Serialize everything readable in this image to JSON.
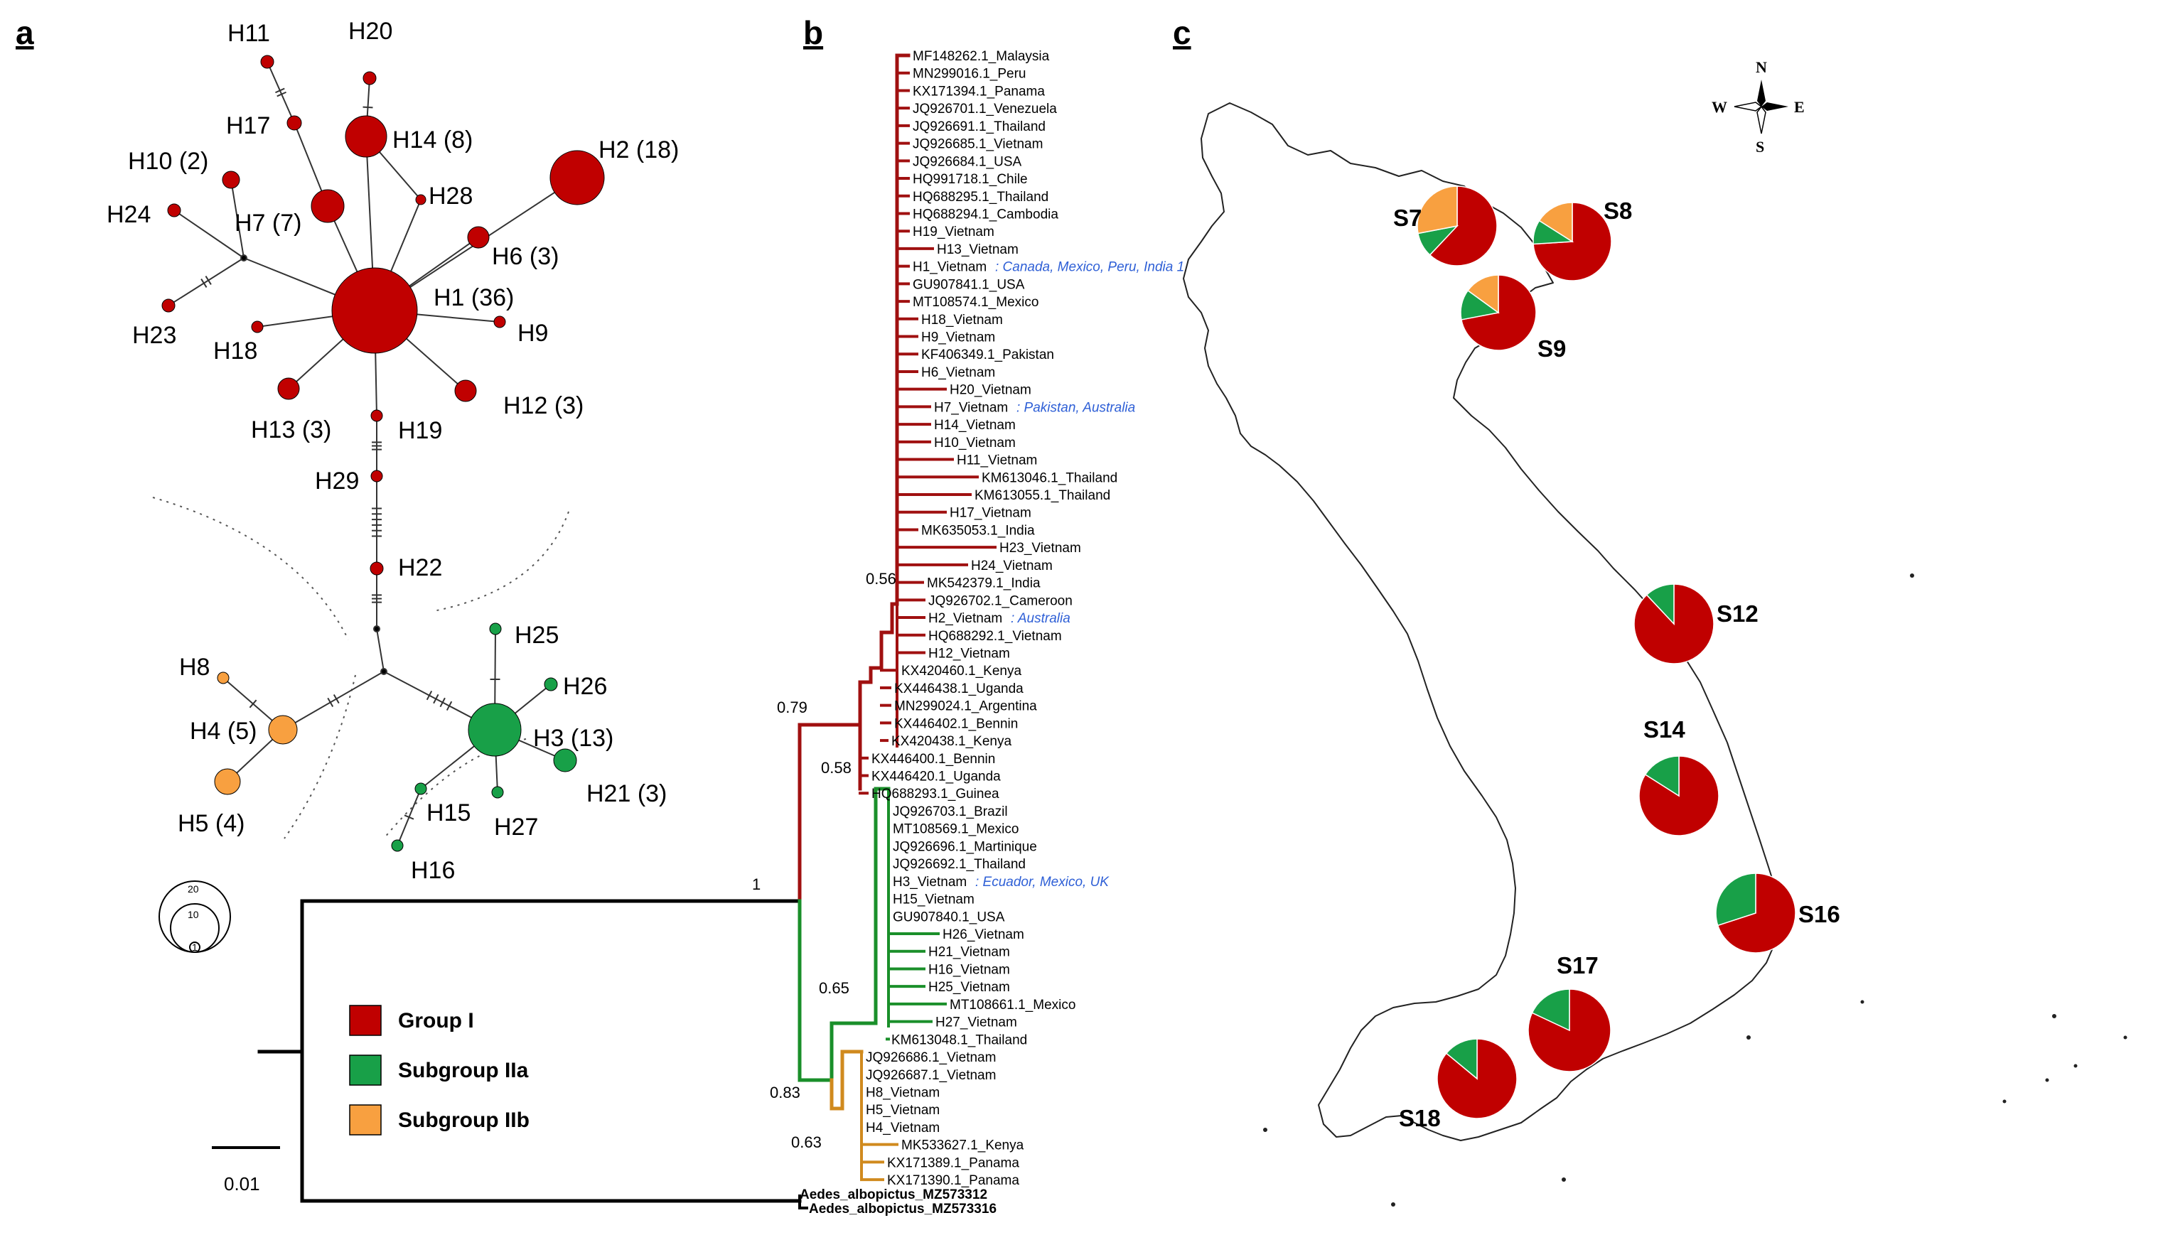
{
  "panels": {
    "a": "a",
    "b": "b",
    "c": "c"
  },
  "colors": {
    "group_1": "#c00000",
    "subgroup_2a": "#18a048",
    "subgroup_2b": "#f8a040",
    "branch_red": "#a01010",
    "branch_green": "#1a8f2a",
    "branch_orange": "#d08a1e"
  },
  "network": {
    "haplotypes": [
      {
        "id": "H1",
        "label": "H1 (36)",
        "group": "I"
      },
      {
        "id": "H2",
        "label": "H2 (18)",
        "group": "I"
      },
      {
        "id": "H14",
        "label": "H14 (8)",
        "group": "I"
      },
      {
        "id": "H7",
        "label": "H7 (7)",
        "group": "I"
      },
      {
        "id": "H10",
        "label": "H10 (2)",
        "group": "I"
      },
      {
        "id": "H6",
        "label": "H6 (3)",
        "group": "I"
      },
      {
        "id": "H13",
        "label": "H13 (3)",
        "group": "I"
      },
      {
        "id": "H12",
        "label": "H12 (3)",
        "group": "I"
      },
      {
        "id": "H11",
        "label": "H11",
        "group": "I"
      },
      {
        "id": "H20",
        "label": "H20",
        "group": "I"
      },
      {
        "id": "H17",
        "label": "H17",
        "group": "I"
      },
      {
        "id": "H28",
        "label": "H28",
        "group": "I"
      },
      {
        "id": "H24",
        "label": "H24",
        "group": "I"
      },
      {
        "id": "H23",
        "label": "H23",
        "group": "I"
      },
      {
        "id": "H18",
        "label": "H18",
        "group": "I"
      },
      {
        "id": "H9",
        "label": "H9",
        "group": "I"
      },
      {
        "id": "H19",
        "label": "H19",
        "group": "I"
      },
      {
        "id": "H29",
        "label": "H29",
        "group": "I"
      },
      {
        "id": "H22",
        "label": "H22",
        "group": "I"
      },
      {
        "id": "H3",
        "label": "H3 (13)",
        "group": "IIa"
      },
      {
        "id": "H25",
        "label": "H25",
        "group": "IIa"
      },
      {
        "id": "H26",
        "label": "H26",
        "group": "IIa"
      },
      {
        "id": "H21",
        "label": "H21 (3)",
        "group": "IIa"
      },
      {
        "id": "H27",
        "label": "H27",
        "group": "IIa"
      },
      {
        "id": "H15",
        "label": "H15",
        "group": "IIa"
      },
      {
        "id": "H16",
        "label": "H16",
        "group": "IIa"
      },
      {
        "id": "H4",
        "label": "H4 (5)",
        "group": "IIb"
      },
      {
        "id": "H5",
        "label": "H5 (4)",
        "group": "IIb"
      },
      {
        "id": "H8",
        "label": "H8",
        "group": "IIb"
      }
    ],
    "size_scale": [
      "20",
      "10",
      "1"
    ]
  },
  "legend": [
    {
      "label": "Group I",
      "color": "#c00000"
    },
    {
      "label": "Subgroup IIa",
      "color": "#18a048"
    },
    {
      "label": "Subgroup IIb",
      "color": "#f8a040"
    }
  ],
  "tree": {
    "scale_bar": "0.01",
    "supports": [
      "1",
      "0.79",
      "0.56",
      "0.58",
      "0.65",
      "0.83",
      "0.63"
    ],
    "tips": [
      {
        "label": "MF148262.1_Malaysia",
        "clade": "I"
      },
      {
        "label": "MN299016.1_Peru",
        "clade": "I"
      },
      {
        "label": "KX171394.1_Panama",
        "clade": "I"
      },
      {
        "label": "JQ926701.1_Venezuela",
        "clade": "I"
      },
      {
        "label": "JQ926691.1_Thailand",
        "clade": "I"
      },
      {
        "label": "JQ926685.1_Vietnam",
        "clade": "I"
      },
      {
        "label": "JQ926684.1_USA",
        "clade": "I"
      },
      {
        "label": "HQ991718.1_Chile",
        "clade": "I"
      },
      {
        "label": "HQ688295.1_Thailand",
        "clade": "I"
      },
      {
        "label": "HQ688294.1_Cambodia",
        "clade": "I"
      },
      {
        "label": "H19_Vietnam",
        "clade": "I"
      },
      {
        "label": "H13_Vietnam",
        "clade": "I"
      },
      {
        "label": "H1_Vietnam",
        "clade": "I",
        "note": ": Canada, Mexico, Peru, India 1"
      },
      {
        "label": "GU907841.1_USA",
        "clade": "I"
      },
      {
        "label": "MT108574.1_Mexico",
        "clade": "I"
      },
      {
        "label": "H18_Vietnam",
        "clade": "I"
      },
      {
        "label": "H9_Vietnam",
        "clade": "I"
      },
      {
        "label": "KF406349.1_Pakistan",
        "clade": "I"
      },
      {
        "label": "H6_Vietnam",
        "clade": "I"
      },
      {
        "label": "H20_Vietnam",
        "clade": "I"
      },
      {
        "label": "H7_Vietnam",
        "clade": "I",
        "note": ": Pakistan, Australia"
      },
      {
        "label": "H14_Vietnam",
        "clade": "I"
      },
      {
        "label": "H10_Vietnam",
        "clade": "I"
      },
      {
        "label": "H11_Vietnam",
        "clade": "I"
      },
      {
        "label": "KM613046.1_Thailand",
        "clade": "I"
      },
      {
        "label": "KM613055.1_Thailand",
        "clade": "I"
      },
      {
        "label": "H17_Vietnam",
        "clade": "I"
      },
      {
        "label": "MK635053.1_India",
        "clade": "I"
      },
      {
        "label": "H23_Vietnam",
        "clade": "I"
      },
      {
        "label": "H24_Vietnam",
        "clade": "I"
      },
      {
        "label": "MK542379.1_India",
        "clade": "I"
      },
      {
        "label": "JQ926702.1_Cameroon",
        "clade": "I"
      },
      {
        "label": "H2_Vietnam",
        "clade": "I",
        "note": ": Australia"
      },
      {
        "label": "HQ688292.1_Vietnam",
        "clade": "I"
      },
      {
        "label": "H12_Vietnam",
        "clade": "I"
      },
      {
        "label": "KX420460.1_Kenya",
        "clade": "I"
      },
      {
        "label": "KX446438.1_Uganda",
        "clade": "I"
      },
      {
        "label": "MN299024.1_Argentina",
        "clade": "I"
      },
      {
        "label": "KX446402.1_Bennin",
        "clade": "I"
      },
      {
        "label": "KX420438.1_Kenya",
        "clade": "I"
      },
      {
        "label": "KX446400.1_Bennin",
        "clade": "I"
      },
      {
        "label": "KX446420.1_Uganda",
        "clade": "I"
      },
      {
        "label": "HQ688293.1_Guinea",
        "clade": "I"
      },
      {
        "label": "JQ926703.1_Brazil",
        "clade": "IIa"
      },
      {
        "label": "MT108569.1_Mexico",
        "clade": "IIa"
      },
      {
        "label": "JQ926696.1_Martinique",
        "clade": "IIa"
      },
      {
        "label": "JQ926692.1_Thailand",
        "clade": "IIa"
      },
      {
        "label": "H3_Vietnam",
        "clade": "IIa",
        "note": ": Ecuador, Mexico, UK"
      },
      {
        "label": "H15_Vietnam",
        "clade": "IIa"
      },
      {
        "label": "GU907840.1_USA",
        "clade": "IIa"
      },
      {
        "label": "H26_Vietnam",
        "clade": "IIa"
      },
      {
        "label": "H21_Vietnam",
        "clade": "IIa"
      },
      {
        "label": "H16_Vietnam",
        "clade": "IIa"
      },
      {
        "label": "H25_Vietnam",
        "clade": "IIa"
      },
      {
        "label": "MT108661.1_Mexico",
        "clade": "IIa"
      },
      {
        "label": "H27_Vietnam",
        "clade": "IIa"
      },
      {
        "label": "KM613048.1_Thailand",
        "clade": "IIa"
      },
      {
        "label": "JQ926686.1_Vietnam",
        "clade": "IIb"
      },
      {
        "label": "JQ926687.1_Vietnam",
        "clade": "IIb"
      },
      {
        "label": "H8_Vietnam",
        "clade": "IIb"
      },
      {
        "label": "H5_Vietnam",
        "clade": "IIb"
      },
      {
        "label": "H4_Vietnam",
        "clade": "IIb"
      },
      {
        "label": "MK533627.1_Kenya",
        "clade": "IIb"
      },
      {
        "label": "KX171389.1_Panama",
        "clade": "IIb"
      },
      {
        "label": "KX171390.1_Panama",
        "clade": "IIb"
      }
    ],
    "outgroup": [
      {
        "label": "Aedes_albopictus_MZ573312"
      },
      {
        "label": "Aedes_albopictus_MZ573316"
      }
    ]
  },
  "map": {
    "compass": {
      "n": "N",
      "s": "S",
      "e": "E",
      "w": "W"
    },
    "sites": [
      {
        "label": "S7",
        "proportions": {
          "I": 0.62,
          "IIa": 0.1,
          "IIb": 0.28
        }
      },
      {
        "label": "S8",
        "proportions": {
          "I": 0.74,
          "IIa": 0.1,
          "IIb": 0.16
        }
      },
      {
        "label": "S9",
        "proportions": {
          "I": 0.72,
          "IIa": 0.13,
          "IIb": 0.15
        }
      },
      {
        "label": "S12",
        "proportions": {
          "I": 0.88,
          "IIa": 0.12,
          "IIb": 0.0
        }
      },
      {
        "label": "S14",
        "proportions": {
          "I": 0.84,
          "IIa": 0.16,
          "IIb": 0.0
        }
      },
      {
        "label": "S16",
        "proportions": {
          "I": 0.7,
          "IIa": 0.3,
          "IIb": 0.0
        }
      },
      {
        "label": "S17",
        "proportions": {
          "I": 0.82,
          "IIa": 0.18,
          "IIb": 0.0
        }
      },
      {
        "label": "S18",
        "proportions": {
          "I": 0.86,
          "IIa": 0.14,
          "IIb": 0.0
        }
      }
    ]
  }
}
